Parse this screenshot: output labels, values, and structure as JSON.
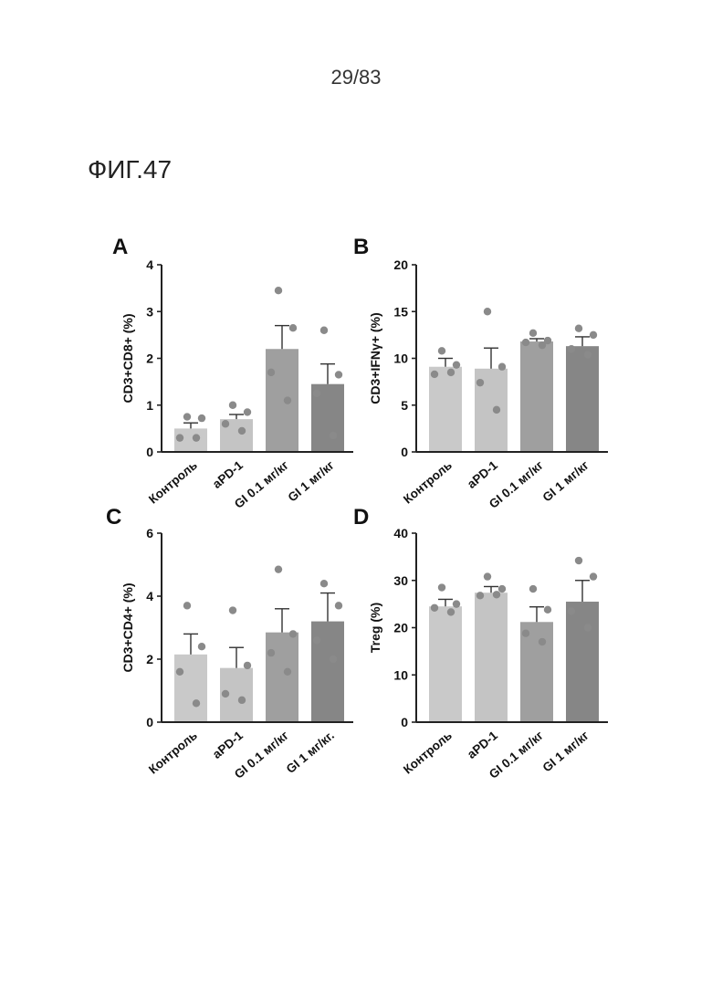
{
  "page_number": "29/83",
  "figure_label": "ФИГ.47",
  "colors": {
    "bar_control": "#c9c9c9",
    "bar_apd1": "#c4c4c4",
    "bar_gi01": "#9f9f9f",
    "bar_gi1": "#868686",
    "dot": "#8a8a8a",
    "axis": "#222222"
  },
  "chart_data": [
    {
      "panel": "A",
      "type": "bar",
      "ylabel": "CD3+CD8+ (%)",
      "ylim": [
        0,
        4
      ],
      "yticks": [
        "0",
        "1",
        "2",
        "3",
        "4"
      ],
      "categories": [
        "Контроль",
        "aPD-1",
        "GI 0.1 мг/кг",
        "GI 1 мг/кг"
      ],
      "values": [
        0.5,
        0.7,
        2.2,
        1.45
      ],
      "errors": [
        0.12,
        0.1,
        0.5,
        0.43
      ],
      "points": [
        [
          0.75,
          0.72,
          0.3,
          0.3
        ],
        [
          1.0,
          0.85,
          0.6,
          0.45
        ],
        [
          3.45,
          2.65,
          1.7,
          1.1
        ],
        [
          2.6,
          1.65,
          1.25,
          0.35
        ]
      ]
    },
    {
      "panel": "B",
      "type": "bar",
      "ylabel": "CD3+IFNγ+ (%)",
      "ylim": [
        0,
        20
      ],
      "yticks": [
        "0",
        "5",
        "10",
        "15",
        "20"
      ],
      "categories": [
        "Контроль",
        "aPD-1",
        "GI 0.1 мг/кг",
        "GI 1 мг/кг"
      ],
      "values": [
        9.1,
        8.9,
        11.8,
        11.3
      ],
      "errors": [
        0.9,
        2.2,
        0.3,
        1.0
      ],
      "points": [
        [
          10.8,
          9.3,
          8.3,
          8.5
        ],
        [
          15.0,
          9.1,
          7.4,
          4.5
        ],
        [
          12.7,
          11.9,
          11.7,
          11.4
        ],
        [
          13.2,
          12.5,
          11.0,
          10.4
        ]
      ]
    },
    {
      "panel": "C",
      "type": "bar",
      "ylabel": "CD3+CD4+ (%)",
      "ylim": [
        0,
        6
      ],
      "yticks": [
        "0",
        "2",
        "4",
        "6"
      ],
      "categories": [
        "Контроль",
        "aPD-1",
        "GI 0.1 мг/кг",
        "GI 1 мг/кг."
      ],
      "values": [
        2.15,
        1.72,
        2.85,
        3.2
      ],
      "errors": [
        0.65,
        0.65,
        0.75,
        0.9
      ],
      "points": [
        [
          3.7,
          2.4,
          1.6,
          0.6
        ],
        [
          3.55,
          1.8,
          0.9,
          0.7
        ],
        [
          4.85,
          2.8,
          2.2,
          1.6
        ],
        [
          4.4,
          3.7,
          2.6,
          2.0
        ]
      ]
    },
    {
      "panel": "D",
      "type": "bar",
      "ylabel": "Treg (%)",
      "ylim": [
        0,
        40
      ],
      "yticks": [
        "0",
        "10",
        "20",
        "30",
        "40"
      ],
      "categories": [
        "Контроль",
        "aPD-1",
        "GI 0.1 мг/кг",
        "GI 1 мг/кг"
      ],
      "values": [
        24.5,
        27.4,
        21.2,
        25.5
      ],
      "errors": [
        1.5,
        1.3,
        3.2,
        4.5
      ],
      "points": [
        [
          28.5,
          25.0,
          24.2,
          23.3
        ],
        [
          30.8,
          28.2,
          26.8,
          27.0
        ],
        [
          28.2,
          23.8,
          18.8,
          17.0
        ],
        [
          34.2,
          30.8,
          23.5,
          20.0
        ]
      ]
    }
  ]
}
